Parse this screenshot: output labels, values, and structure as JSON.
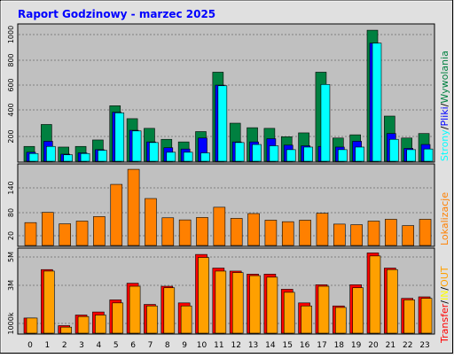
{
  "title": "Raport Godzinowy -  marzec 2025",
  "colors": {
    "background": "#E0E0E0",
    "plot_bg": "#C0C0C0",
    "title": "#0000FF",
    "wywolania": "#008040",
    "pliki": "#0000FF",
    "strony": "#00FFFF",
    "lokalizacje": "#FF8000",
    "transfer_out": "#FFA000",
    "transfer_in": "#FF0000"
  },
  "side_labels": {
    "top": {
      "wywolania": "Wywolania",
      "sep1": "/",
      "pliki": "Pliki",
      "sep2": "/",
      "strony": "Strony"
    },
    "middle": {
      "lokalizacje": "Lokalizacje"
    },
    "bottom": {
      "out": "OUT",
      "in": "IN",
      "sep1": "/",
      "sep2": "/",
      "transfer": "Transfer"
    }
  },
  "chart_data": [
    {
      "type": "bar",
      "id": "hits",
      "categories": [
        "0",
        "1",
        "2",
        "3",
        "4",
        "5",
        "6",
        "7",
        "8",
        "9",
        "10",
        "11",
        "12",
        "13",
        "14",
        "15",
        "16",
        "17",
        "18",
        "19",
        "20",
        "21",
        "22",
        "23"
      ],
      "series": [
        {
          "name": "Wywolania",
          "values": [
            115,
            285,
            110,
            115,
            165,
            430,
            330,
            255,
            170,
            150,
            230,
            690,
            295,
            260,
            255,
            190,
            220,
            690,
            180,
            205,
            1015,
            350,
            180,
            215
          ]
        },
        {
          "name": "Pliki",
          "values": [
            70,
            155,
            55,
            65,
            90,
            380,
            240,
            150,
            105,
            95,
            180,
            590,
            150,
            150,
            175,
            125,
            120,
            115,
            110,
            155,
            915,
            215,
            100,
            130
          ]
        },
        {
          "name": "Strony",
          "values": [
            60,
            115,
            50,
            60,
            85,
            375,
            235,
            145,
            70,
            70,
            65,
            585,
            145,
            130,
            120,
            90,
            110,
            595,
            90,
            110,
            915,
            170,
            90,
            95
          ]
        }
      ],
      "yticks": [
        "200",
        "400",
        "600",
        "800",
        "1000"
      ],
      "ylim": [
        0,
        1050
      ]
    },
    {
      "type": "bar",
      "id": "sites",
      "categories": [
        "0",
        "1",
        "2",
        "3",
        "4",
        "5",
        "6",
        "7",
        "8",
        "9",
        "10",
        "11",
        "12",
        "13",
        "14",
        "15",
        "16",
        "17",
        "18",
        "19",
        "20",
        "21",
        "22",
        "23"
      ],
      "series": [
        {
          "name": "Lokalizacje",
          "values": [
            76,
            110,
            72,
            81,
            96,
            203,
            253,
            156,
            92,
            85,
            93,
            127,
            90,
            106,
            84,
            79,
            84,
            107,
            71,
            69,
            81,
            87,
            66,
            87
          ]
        }
      ],
      "yticks": [
        "20",
        "80",
        "140"
      ],
      "ylim": [
        0,
        265
      ]
    },
    {
      "type": "bar",
      "id": "transfer",
      "categories": [
        "0",
        "1",
        "2",
        "3",
        "4",
        "5",
        "6",
        "7",
        "8",
        "9",
        "10",
        "11",
        "12",
        "13",
        "14",
        "15",
        "16",
        "17",
        "18",
        "19",
        "20",
        "21",
        "22",
        "23"
      ],
      "series": [
        {
          "name": "IN",
          "values": [
            1.0,
            4.2,
            0.5,
            1.2,
            1.4,
            2.2,
            3.3,
            1.9,
            3.1,
            2.0,
            5.2,
            4.3,
            4.1,
            3.9,
            3.9,
            2.9,
            2.0,
            3.2,
            1.8,
            3.2,
            5.3,
            4.3,
            2.3,
            2.4
          ]
        },
        {
          "name": "OUT",
          "values": [
            1.0,
            4.1,
            0.4,
            1.1,
            1.2,
            2.0,
            3.1,
            1.8,
            3.0,
            1.8,
            5.0,
            4.1,
            4.0,
            3.8,
            3.7,
            2.7,
            1.8,
            3.1,
            1.7,
            3.0,
            5.1,
            4.2,
            2.2,
            2.3
          ]
        }
      ],
      "yticks": [
        "1000k",
        "3M",
        "5M"
      ],
      "ylim": [
        0,
        5.5
      ]
    }
  ]
}
